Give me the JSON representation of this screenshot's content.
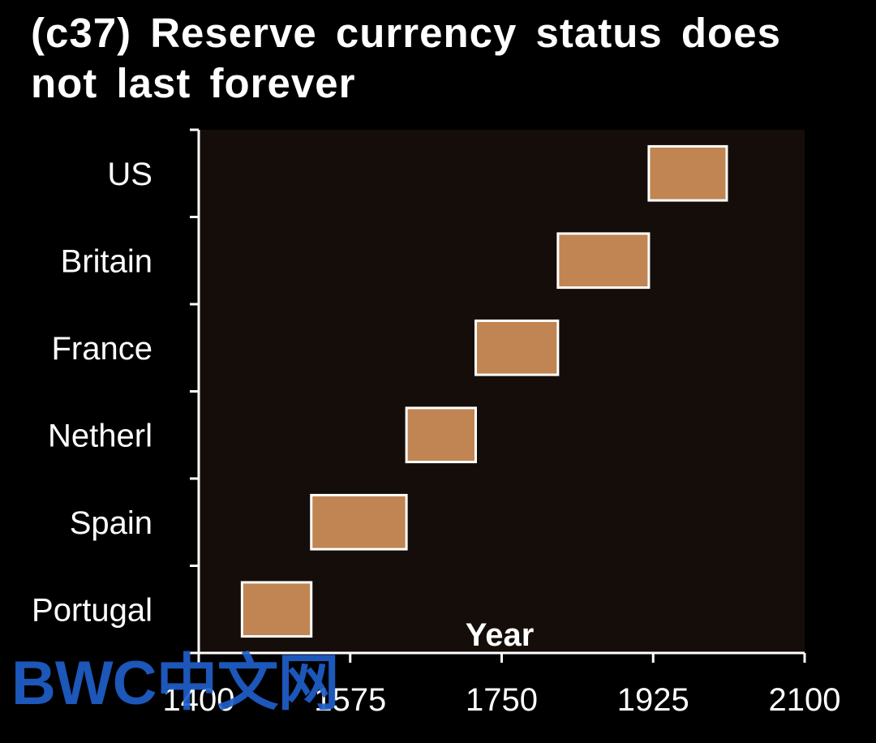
{
  "title": "(c37) Reserve currency status does not last forever",
  "watermark": "BWC中文网",
  "colors": {
    "background": "#000000",
    "plot_area": "#140d09",
    "bar_fill": "#c08552",
    "bar_stroke": "#ffffff",
    "axis": "#ffffff",
    "text": "#ffffff",
    "watermark": "#1f5fc9"
  },
  "chart_data": {
    "type": "bar",
    "orientation": "horizontal-range",
    "title": "(c37) Reserve currency status does not last forever",
    "xlabel": "Year",
    "ylabel": "",
    "xlim": [
      1400,
      2100
    ],
    "xticks": [
      1400,
      1575,
      1750,
      1925,
      2100
    ],
    "categories": [
      "US",
      "Britain",
      "France",
      "Netherl",
      "Spain",
      "Portugal"
    ],
    "ranges": [
      {
        "name": "US",
        "start": 1920,
        "end": 2010
      },
      {
        "name": "Britain",
        "start": 1815,
        "end": 1920
      },
      {
        "name": "France",
        "start": 1720,
        "end": 1815
      },
      {
        "name": "Netherl",
        "start": 1640,
        "end": 1720
      },
      {
        "name": "Spain",
        "start": 1530,
        "end": 1640
      },
      {
        "name": "Portugal",
        "start": 1450,
        "end": 1530
      }
    ],
    "grid": false,
    "legend": "none"
  }
}
